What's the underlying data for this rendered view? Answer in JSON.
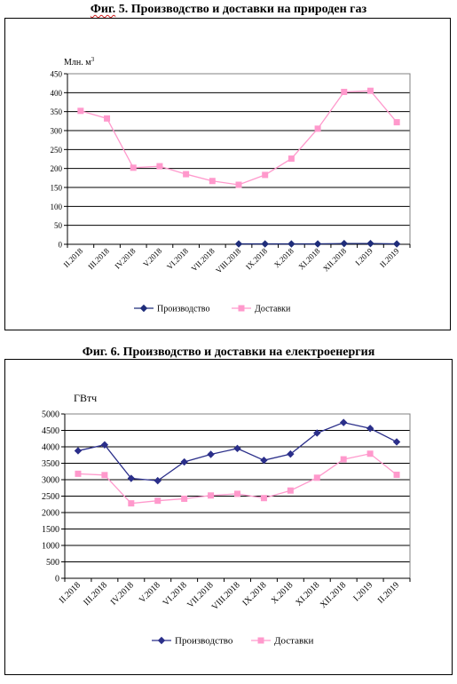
{
  "charts": [
    {
      "title_prefix": "Фиг.",
      "title_rest": " 5. Производство и доставки на природен газ",
      "unit": "Млн. м",
      "unit_sup": "3"
    },
    {
      "title": "Фиг. 6. Производство и доставки на електроенергия",
      "unit": "ГВтч"
    }
  ],
  "chart_data": [
    {
      "type": "line",
      "categories": [
        "II.2018",
        "III.2018",
        "IV.2018",
        "V.2018",
        "VI.2018",
        "VII.2018",
        "VIII.2018",
        "IX.2018",
        "X.2018",
        "XI.2018",
        "XII.2018",
        "I.2019",
        "II.2019"
      ],
      "ylim": [
        0,
        450
      ],
      "ytick_step": 50,
      "yticks": [
        "0",
        "50",
        "100",
        "150",
        "200",
        "250",
        "300",
        "350",
        "400",
        "450"
      ],
      "grid": true,
      "legend": "bottom",
      "series": [
        {
          "name": "Производство",
          "color": "#1f2d7a",
          "marker": "diamond",
          "values": [
            null,
            null,
            null,
            null,
            null,
            null,
            1,
            1,
            1,
            1,
            2,
            2,
            1
          ]
        },
        {
          "name": "Доставки",
          "color": "#ff99cc",
          "marker": "square",
          "values": [
            352,
            332,
            202,
            206,
            185,
            167,
            157,
            183,
            226,
            305,
            402,
            405,
            322
          ]
        }
      ]
    },
    {
      "type": "line",
      "categories": [
        "II.2018",
        "III.2018",
        "IV.2018",
        "V.2018",
        "VI.2018",
        "VII.2018",
        "VIII.2018",
        "IX.2018",
        "X.2018",
        "XI.2018",
        "XII.2018",
        "I.2019",
        "II.2019"
      ],
      "ylim": [
        0,
        5000
      ],
      "ytick_step": 500,
      "yticks": [
        "0",
        "500",
        "1000",
        "1500",
        "2000",
        "2500",
        "3000",
        "3500",
        "4000",
        "4500",
        "5000"
      ],
      "grid": true,
      "legend": "bottom",
      "series": [
        {
          "name": "Производство",
          "color": "#2b2f8a",
          "marker": "diamond",
          "values": [
            3880,
            4060,
            3040,
            2970,
            3540,
            3770,
            3950,
            3590,
            3780,
            4420,
            4740,
            4560,
            4150
          ]
        },
        {
          "name": "Доставки",
          "color": "#ff99cc",
          "marker": "square",
          "values": [
            3180,
            3140,
            2280,
            2360,
            2420,
            2520,
            2570,
            2440,
            2670,
            3060,
            3620,
            3790,
            3150
          ]
        }
      ]
    }
  ]
}
